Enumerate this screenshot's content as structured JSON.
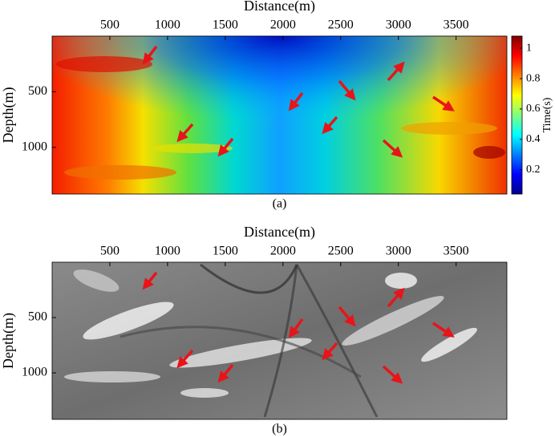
{
  "chart_data": [
    {
      "type": "heatmap",
      "x_label": "Distance(m)",
      "y_label": "Depth(m)",
      "caption": "(a)",
      "xlim": [
        0,
        3940
      ],
      "xticks": [
        500,
        1000,
        1500,
        2000,
        2500,
        3000,
        3500
      ],
      "ylim": [
        0,
        1420
      ],
      "yticks": [
        500,
        1000
      ],
      "y_reversed": true,
      "colormap": "jet",
      "colorbar": {
        "label": "Time(s)",
        "lim": [
          0.04,
          1.08
        ],
        "ticks": [
          0.2,
          0.4,
          0.6,
          0.8,
          1
        ]
      }
    },
    {
      "type": "heatmap",
      "x_label": "Distance(m)",
      "y_label": "Depth(m)",
      "caption": "(b)",
      "xlim": [
        0,
        3940
      ],
      "xticks": [
        500,
        1000,
        1500,
        2000,
        2500,
        3000,
        3500
      ],
      "ylim": [
        0,
        1420
      ],
      "yticks": [
        500,
        1000
      ],
      "y_reversed": true,
      "colormap": "gray"
    }
  ]
}
